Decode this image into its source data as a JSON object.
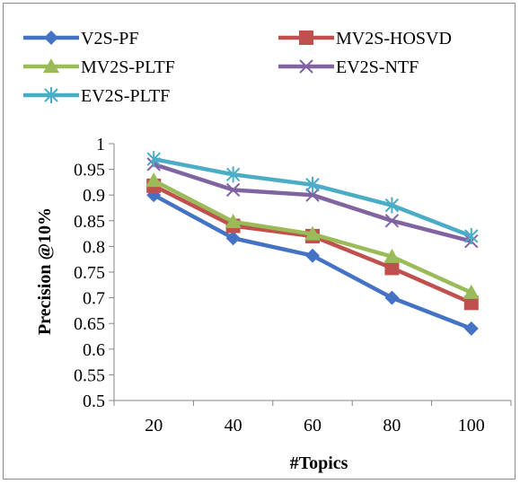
{
  "chart_data": {
    "type": "line",
    "xlabel": "#Topics",
    "ylabel": "Precision @10%",
    "categories": [
      "20",
      "40",
      "60",
      "80",
      "100"
    ],
    "ylim": [
      0.5,
      1
    ],
    "yticks": [
      "0.5",
      "0.55",
      "0.6",
      "0.65",
      "0.7",
      "0.75",
      "0.8",
      "0.85",
      "0.9",
      "0.95",
      "1"
    ],
    "grid": false,
    "legend_position": "top",
    "series": [
      {
        "name": "V2S-PF",
        "color": "#4472C4",
        "marker": "diamond",
        "values": [
          0.9,
          0.816,
          0.782,
          0.7,
          0.64
        ]
      },
      {
        "name": "MV2S-HOSVD",
        "color": "#C0504D",
        "marker": "square",
        "values": [
          0.918,
          0.84,
          0.82,
          0.758,
          0.69
        ]
      },
      {
        "name": "MV2S-PLTF",
        "color": "#9BBB59",
        "marker": "triangle",
        "values": [
          0.928,
          0.848,
          0.824,
          0.78,
          0.71
        ]
      },
      {
        "name": "EV2S-NTF",
        "color": "#8064A2",
        "marker": "x",
        "values": [
          0.96,
          0.91,
          0.9,
          0.85,
          0.81
        ]
      },
      {
        "name": "EV2S-PLTF",
        "color": "#4BACC6",
        "marker": "asterisk",
        "values": [
          0.97,
          0.94,
          0.92,
          0.88,
          0.82
        ]
      }
    ]
  }
}
